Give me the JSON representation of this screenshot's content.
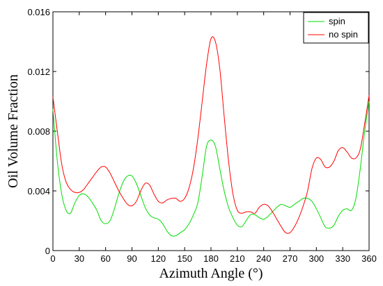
{
  "chart_data": {
    "type": "line",
    "title": "",
    "xlabel": "Azimuth Angle (°)",
    "ylabel": "Oil Volume Fraction",
    "xlim": [
      0,
      360
    ],
    "ylim": [
      0,
      0.016
    ],
    "x_ticks": [
      0,
      30,
      60,
      90,
      120,
      150,
      180,
      210,
      240,
      270,
      300,
      330,
      360
    ],
    "x_tick_labels": [
      "0",
      "30",
      "60",
      "90",
      "120",
      "150",
      "180",
      "210",
      "240",
      "270",
      "300",
      "330",
      "360"
    ],
    "y_ticks": [
      0,
      0.004,
      0.008,
      0.012,
      0.016
    ],
    "y_tick_labels": [
      "0",
      "0.004",
      "0.008",
      "0.012",
      "0.016"
    ],
    "grid": false,
    "legend_position": "top-right",
    "series": [
      {
        "name": "spin",
        "color": "#00dd00",
        "points": [
          [
            0,
            0.0095
          ],
          [
            5,
            0.006
          ],
          [
            10,
            0.0038
          ],
          [
            15,
            0.0027
          ],
          [
            20,
            0.0025
          ],
          [
            25,
            0.0032
          ],
          [
            30,
            0.0037
          ],
          [
            35,
            0.0038
          ],
          [
            40,
            0.0036
          ],
          [
            45,
            0.0032
          ],
          [
            50,
            0.0027
          ],
          [
            55,
            0.002
          ],
          [
            60,
            0.0018
          ],
          [
            65,
            0.002
          ],
          [
            70,
            0.0028
          ],
          [
            75,
            0.0038
          ],
          [
            80,
            0.0046
          ],
          [
            85,
            0.005
          ],
          [
            90,
            0.005
          ],
          [
            95,
            0.0045
          ],
          [
            100,
            0.0037
          ],
          [
            105,
            0.0029
          ],
          [
            110,
            0.0024
          ],
          [
            115,
            0.0022
          ],
          [
            120,
            0.0021
          ],
          [
            125,
            0.0018
          ],
          [
            130,
            0.0013
          ],
          [
            135,
            0.001
          ],
          [
            140,
            0.001
          ],
          [
            145,
            0.0012
          ],
          [
            150,
            0.0014
          ],
          [
            155,
            0.0018
          ],
          [
            160,
            0.0024
          ],
          [
            165,
            0.0032
          ],
          [
            170,
            0.005
          ],
          [
            175,
            0.007
          ],
          [
            180,
            0.0074
          ],
          [
            185,
            0.007
          ],
          [
            190,
            0.0055
          ],
          [
            195,
            0.004
          ],
          [
            200,
            0.0029
          ],
          [
            205,
            0.0022
          ],
          [
            210,
            0.0017
          ],
          [
            215,
            0.0016
          ],
          [
            220,
            0.002
          ],
          [
            225,
            0.0024
          ],
          [
            230,
            0.0024
          ],
          [
            235,
            0.0022
          ],
          [
            240,
            0.0021
          ],
          [
            245,
            0.0023
          ],
          [
            250,
            0.0026
          ],
          [
            255,
            0.0029
          ],
          [
            260,
            0.0031
          ],
          [
            265,
            0.003
          ],
          [
            270,
            0.0029
          ],
          [
            275,
            0.0031
          ],
          [
            280,
            0.0033
          ],
          [
            285,
            0.0035
          ],
          [
            290,
            0.0035
          ],
          [
            295,
            0.0033
          ],
          [
            300,
            0.0028
          ],
          [
            305,
            0.0022
          ],
          [
            310,
            0.0016
          ],
          [
            315,
            0.0015
          ],
          [
            320,
            0.0017
          ],
          [
            325,
            0.0023
          ],
          [
            330,
            0.0027
          ],
          [
            335,
            0.0028
          ],
          [
            340,
            0.0027
          ],
          [
            345,
            0.0035
          ],
          [
            350,
            0.0055
          ],
          [
            355,
            0.008
          ],
          [
            360,
            0.01
          ]
        ]
      },
      {
        "name": "no spin",
        "color": "#ff0000",
        "points": [
          [
            0,
            0.0103
          ],
          [
            5,
            0.008
          ],
          [
            10,
            0.0058
          ],
          [
            15,
            0.0046
          ],
          [
            20,
            0.0041
          ],
          [
            25,
            0.0039
          ],
          [
            30,
            0.0039
          ],
          [
            35,
            0.0041
          ],
          [
            40,
            0.0045
          ],
          [
            45,
            0.0049
          ],
          [
            50,
            0.0053
          ],
          [
            55,
            0.0056
          ],
          [
            60,
            0.0056
          ],
          [
            65,
            0.0052
          ],
          [
            70,
            0.0046
          ],
          [
            75,
            0.004
          ],
          [
            80,
            0.0035
          ],
          [
            85,
            0.0031
          ],
          [
            90,
            0.003
          ],
          [
            95,
            0.0033
          ],
          [
            100,
            0.004
          ],
          [
            105,
            0.0045
          ],
          [
            110,
            0.0044
          ],
          [
            115,
            0.0038
          ],
          [
            120,
            0.0033
          ],
          [
            125,
            0.0032
          ],
          [
            130,
            0.0034
          ],
          [
            135,
            0.0035
          ],
          [
            140,
            0.0035
          ],
          [
            145,
            0.0033
          ],
          [
            150,
            0.0035
          ],
          [
            155,
            0.0042
          ],
          [
            160,
            0.0055
          ],
          [
            165,
            0.0075
          ],
          [
            170,
            0.01
          ],
          [
            175,
            0.0125
          ],
          [
            180,
            0.0142
          ],
          [
            185,
            0.014
          ],
          [
            190,
            0.0122
          ],
          [
            195,
            0.009
          ],
          [
            200,
            0.006
          ],
          [
            205,
            0.0038
          ],
          [
            210,
            0.0027
          ],
          [
            215,
            0.0025
          ],
          [
            220,
            0.0026
          ],
          [
            225,
            0.0026
          ],
          [
            230,
            0.0025
          ],
          [
            235,
            0.0029
          ],
          [
            240,
            0.0031
          ],
          [
            245,
            0.003
          ],
          [
            250,
            0.0026
          ],
          [
            255,
            0.0021
          ],
          [
            260,
            0.0016
          ],
          [
            265,
            0.0012
          ],
          [
            270,
            0.0012
          ],
          [
            275,
            0.0016
          ],
          [
            280,
            0.0022
          ],
          [
            285,
            0.003
          ],
          [
            290,
            0.004
          ],
          [
            295,
            0.0055
          ],
          [
            300,
            0.0062
          ],
          [
            305,
            0.0061
          ],
          [
            310,
            0.0056
          ],
          [
            315,
            0.0056
          ],
          [
            320,
            0.006
          ],
          [
            325,
            0.0067
          ],
          [
            330,
            0.0069
          ],
          [
            335,
            0.0066
          ],
          [
            340,
            0.0062
          ],
          [
            345,
            0.0062
          ],
          [
            350,
            0.0068
          ],
          [
            355,
            0.0085
          ],
          [
            360,
            0.0104
          ]
        ]
      }
    ]
  }
}
